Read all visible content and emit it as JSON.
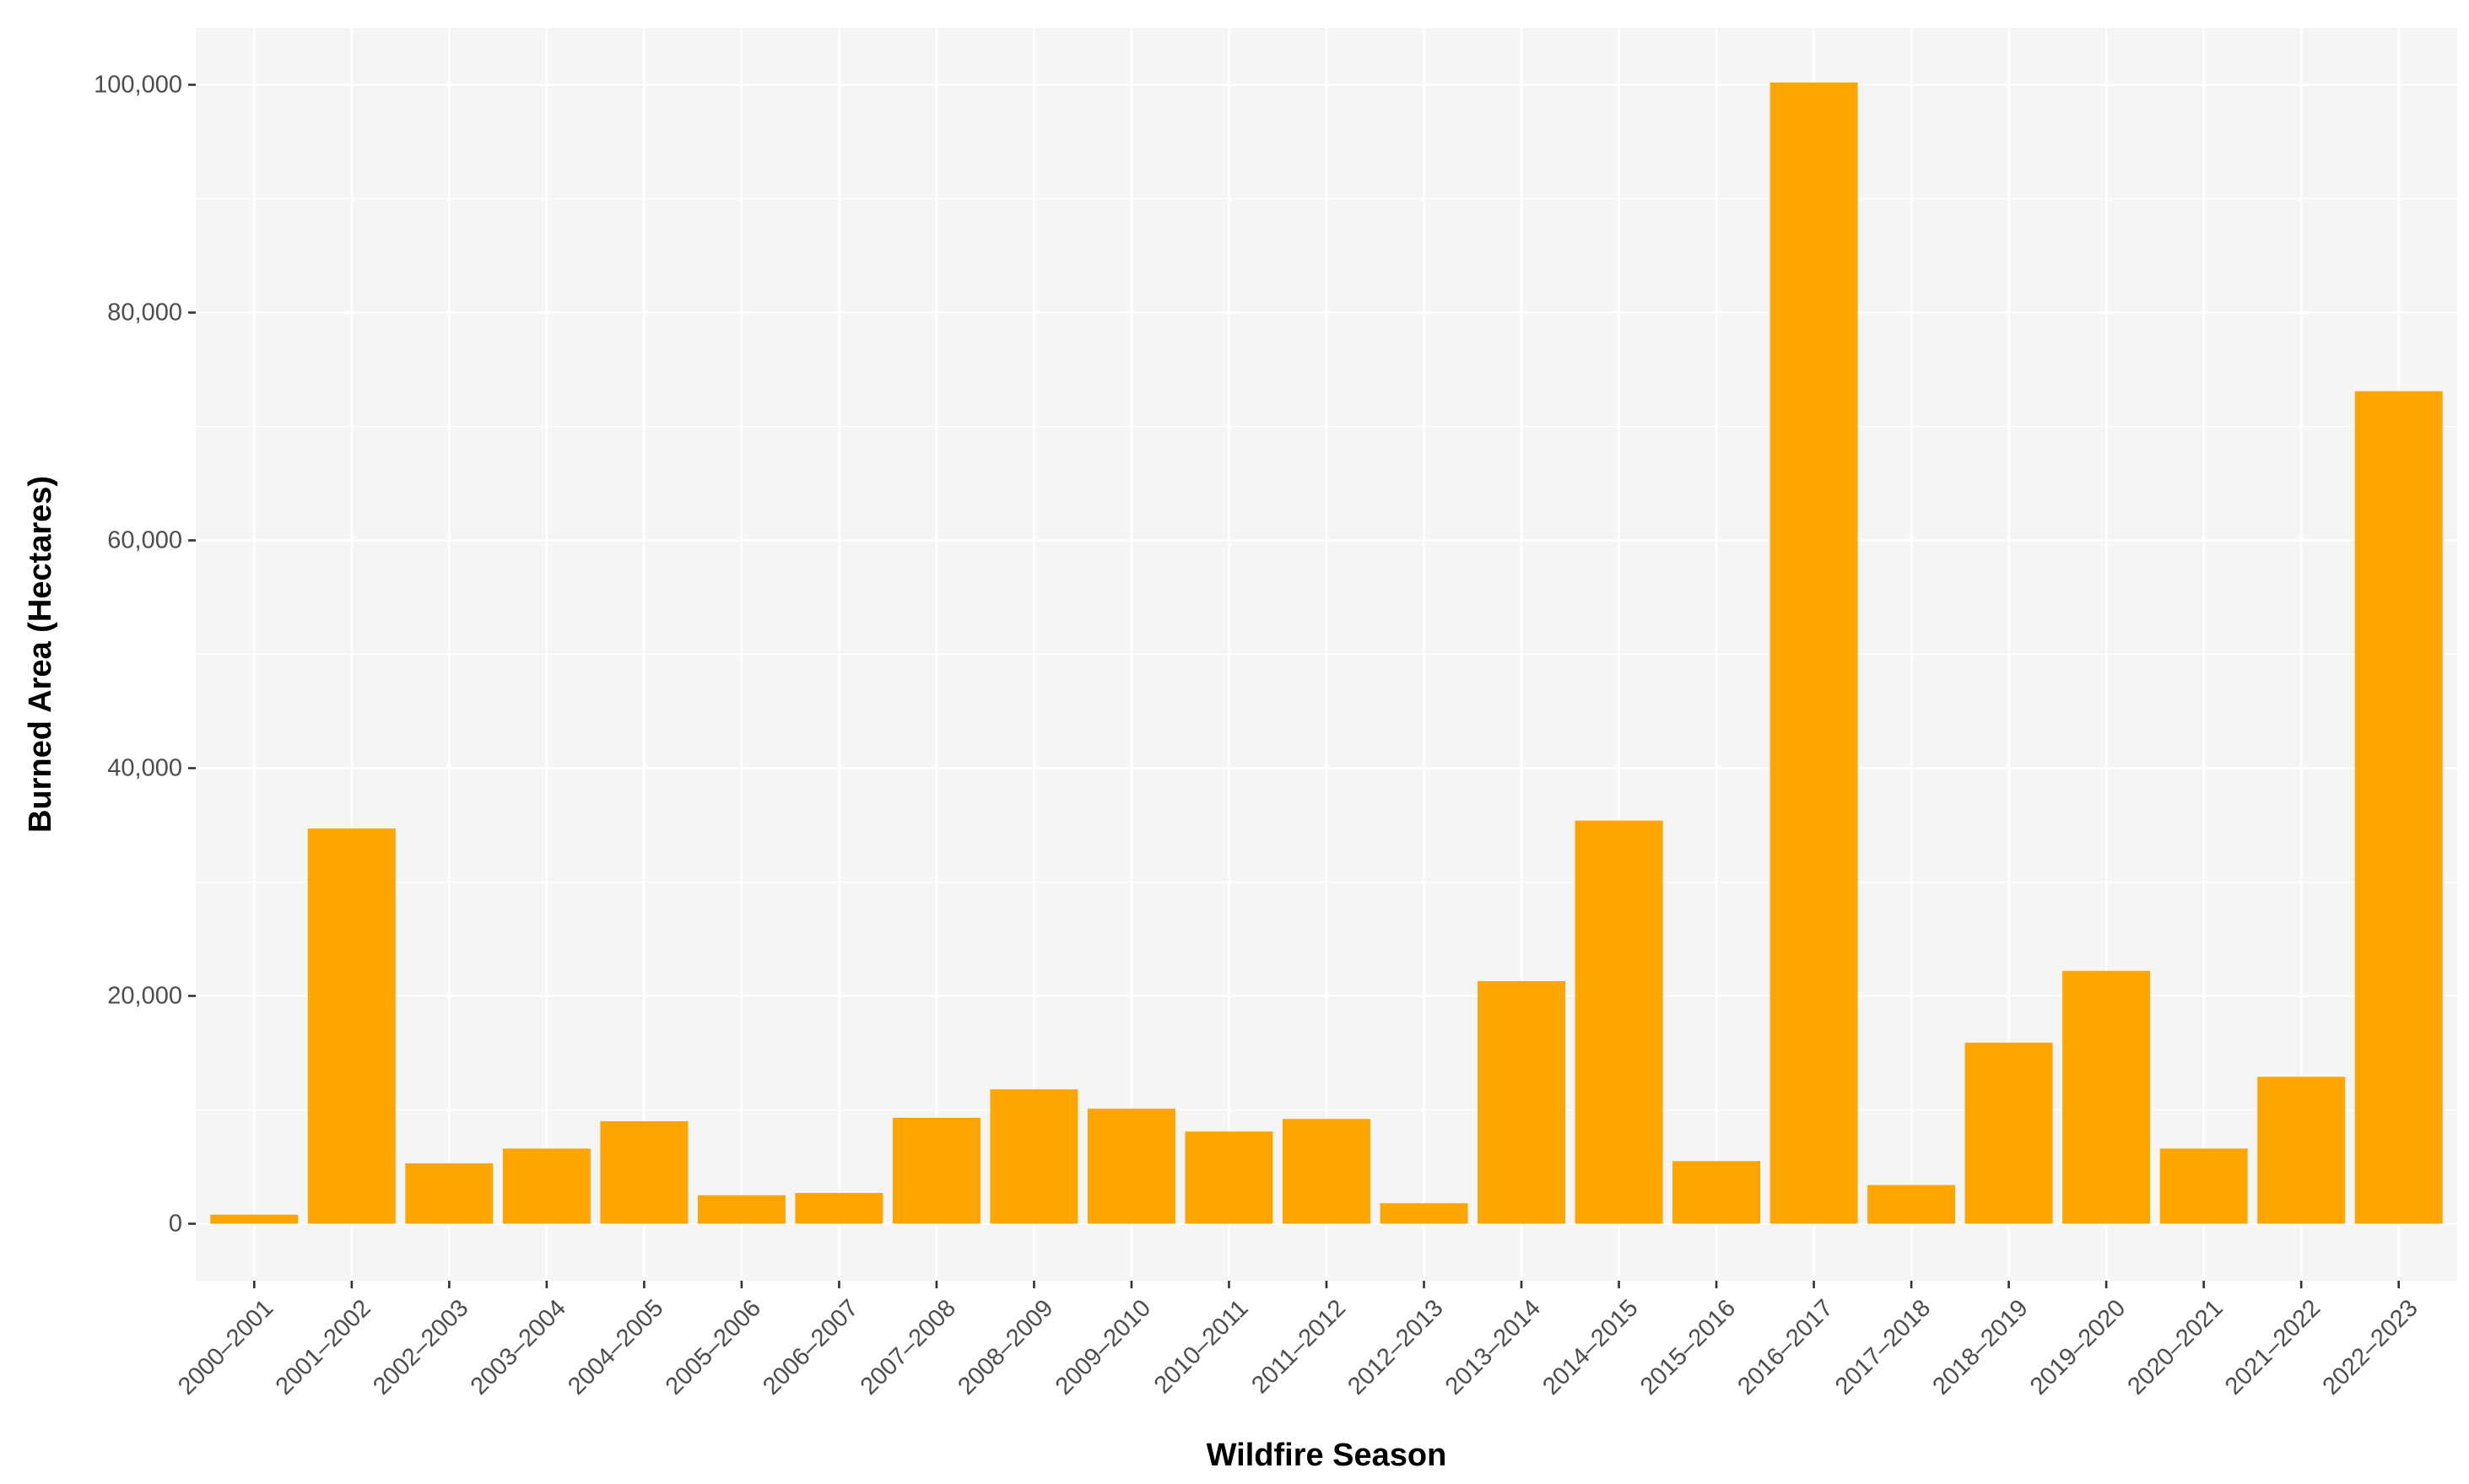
{
  "chart_data": {
    "type": "bar",
    "xlabel": "Wildfire Season",
    "ylabel": "Burned Area (Hectares)",
    "categories": [
      "2000–2001",
      "2001–2002",
      "2002–2003",
      "2003–2004",
      "2004–2005",
      "2005–2006",
      "2006–2007",
      "2007–2008",
      "2008–2009",
      "2009–2010",
      "2010–2011",
      "2011–2012",
      "2012–2013",
      "2013–2014",
      "2014–2015",
      "2015–2016",
      "2016–2017",
      "2017–2018",
      "2018–2019",
      "2019–2020",
      "2020–2021",
      "2021–2022",
      "2022–2023"
    ],
    "values": [
      800,
      34700,
      5300,
      6600,
      9000,
      2500,
      2700,
      9300,
      11800,
      10100,
      8100,
      9200,
      1800,
      21300,
      35400,
      5500,
      100200,
      3400,
      15900,
      22200,
      6600,
      12900,
      73100
    ],
    "ylim": [
      -5000,
      105000
    ],
    "yticks": [
      0,
      20000,
      40000,
      60000,
      80000,
      100000
    ],
    "ytick_labels": [
      "0",
      "20,000",
      "40,000",
      "60,000",
      "80,000",
      "100,000"
    ],
    "grid": true,
    "colors": {
      "bar": "#FFA500",
      "panel": "#F5F5F5",
      "grid": "#FFFFFF"
    }
  }
}
